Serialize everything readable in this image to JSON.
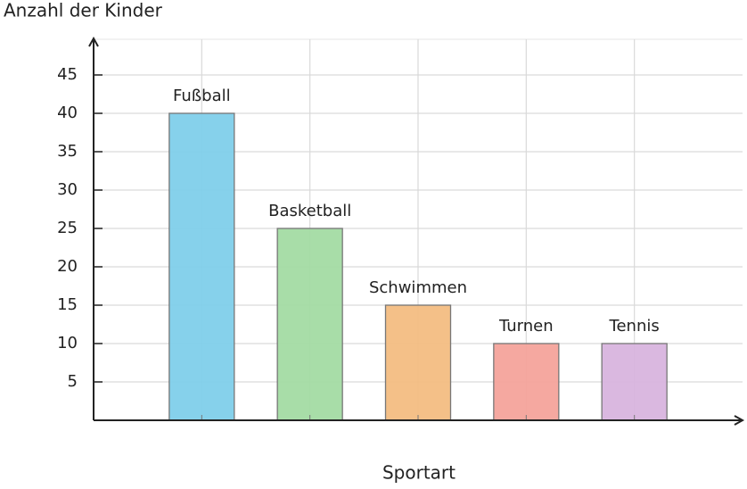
{
  "chart_data": {
    "type": "bar",
    "y_label": "Anzahl der Kinder",
    "x_label": "Sportart",
    "categories": [
      "Fußball",
      "Basketball",
      "Schwimmen",
      "Turnen",
      "Tennis"
    ],
    "values": [
      40,
      25,
      15,
      10,
      10
    ],
    "colors": [
      "#7fcfea",
      "#a3dba3",
      "#f3bd82",
      "#f4a39b",
      "#d8b4de"
    ],
    "ylim": [
      0,
      50
    ],
    "yticks": [
      5,
      10,
      15,
      20,
      25,
      30,
      35,
      40,
      45
    ],
    "grid": true
  }
}
